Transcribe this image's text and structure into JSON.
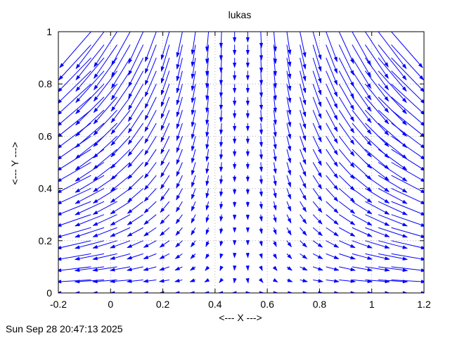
{
  "chart_data": {
    "type": "vector-field",
    "title": "lukas",
    "xlabel": "<--- X --->",
    "ylabel": "<--- Y --->",
    "xlim": [
      -0.2,
      1.2
    ],
    "ylim": [
      0,
      1
    ],
    "xticks": [
      "-0.2",
      "0",
      "0.2",
      "0.4",
      "0.6",
      "0.8",
      "1",
      "1.2"
    ],
    "yticks": [
      "0",
      "0.2",
      "0.4",
      "0.6",
      "0.8",
      "1"
    ],
    "grid": true,
    "grid_x": [
      0,
      0.2,
      0.4,
      0.6,
      0.8,
      1
    ],
    "grid_y": [
      0.2,
      0.4,
      0.6,
      0.8
    ],
    "field": {
      "columns": [
        -0.075,
        -0.025,
        0.025,
        0.075,
        0.125,
        0.175,
        0.225,
        0.275,
        0.325,
        0.375,
        0.425,
        0.475,
        0.525,
        0.575,
        0.625,
        0.675,
        0.725,
        0.775,
        0.825,
        0.875,
        0.925,
        0.975,
        1.025,
        1.075
      ],
      "rows": [
        0,
        0.05,
        0.1,
        0.15,
        0.2,
        0.25,
        0.3,
        0.35,
        0.4,
        0.45,
        0.5,
        0.55,
        0.6,
        0.65,
        0.7,
        0.75,
        0.8,
        0.85,
        0.9,
        0.95,
        1.0
      ],
      "center_x": 0.5,
      "color": "#0000ff"
    },
    "footer_timestamp": "Sun Sep 28 20:47:13 2025"
  }
}
